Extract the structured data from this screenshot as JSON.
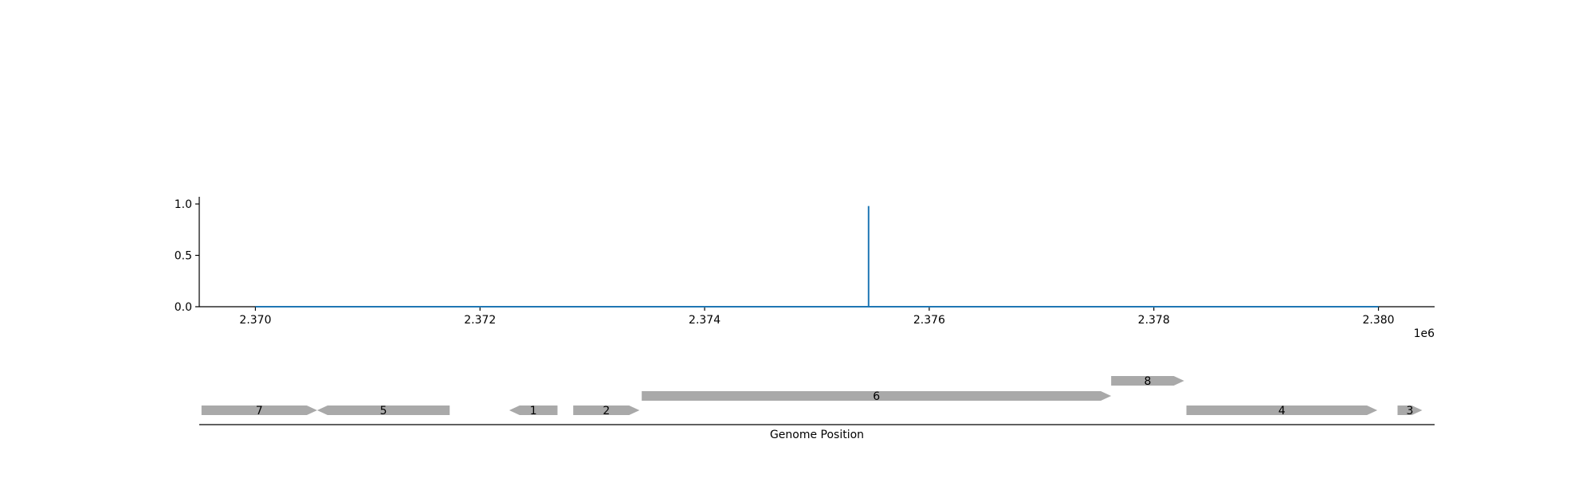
{
  "chart_data": [
    {
      "type": "line",
      "title": "",
      "xlabel": "",
      "ylabel": "",
      "x_offset_label": "1e6",
      "xlim": [
        2369500,
        2380500
      ],
      "ylim": [
        0,
        1.07
      ],
      "x_ticks": [
        2370000,
        2372000,
        2374000,
        2376000,
        2378000,
        2380000
      ],
      "x_tick_labels": [
        "2.370",
        "2.372",
        "2.374",
        "2.376",
        "2.378",
        "2.380"
      ],
      "y_ticks": [
        0.0,
        0.5,
        1.0
      ],
      "y_tick_labels": [
        "0.0",
        "0.5",
        "1.0"
      ],
      "grid": false,
      "color": "#1f77b4",
      "series": [
        {
          "x": [
            2370000,
            2375460,
            2375460,
            2375460,
            2380000
          ],
          "values": [
            0,
            0,
            0.98,
            0,
            0
          ]
        }
      ]
    },
    {
      "type": "gene_map",
      "xlabel": "Genome Position",
      "xlim": [
        2369500,
        2380500
      ],
      "color": "#a9a9a9",
      "genes": [
        {
          "label": "7",
          "start": 2369520,
          "end": 2370550,
          "strand": 1,
          "track": 0
        },
        {
          "label": "5",
          "start": 2370550,
          "end": 2371730,
          "strand": -1,
          "track": 0
        },
        {
          "label": "1",
          "start": 2372260,
          "end": 2372690,
          "strand": -1,
          "track": 0
        },
        {
          "label": "2",
          "start": 2372830,
          "end": 2373420,
          "strand": 1,
          "track": 0
        },
        {
          "label": "6",
          "start": 2373440,
          "end": 2377620,
          "strand": 1,
          "track": 1
        },
        {
          "label": "8",
          "start": 2377620,
          "end": 2378270,
          "strand": 1,
          "track": 2
        },
        {
          "label": "4",
          "start": 2378290,
          "end": 2379990,
          "strand": 1,
          "track": 0
        },
        {
          "label": "3",
          "start": 2380170,
          "end": 2380390,
          "strand": 1,
          "track": 0
        }
      ]
    }
  ]
}
